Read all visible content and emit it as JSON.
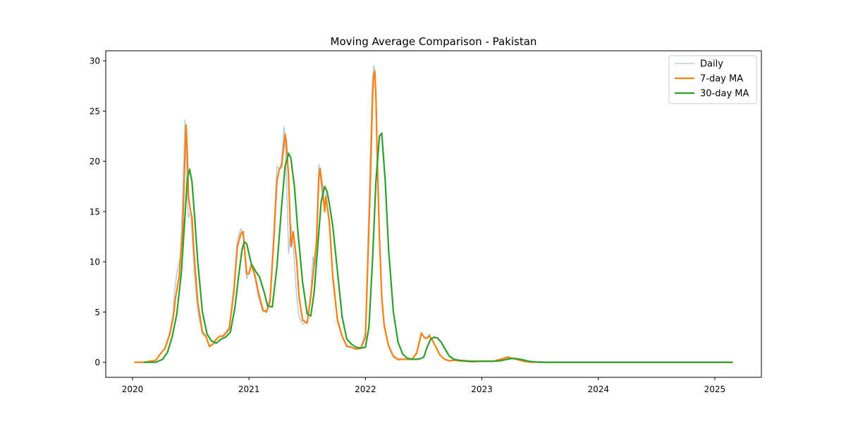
{
  "chart_data": {
    "type": "line",
    "title": "Moving Average Comparison - Pakistan",
    "xlabel": "",
    "ylabel": "",
    "xlim": [
      2019.77,
      2025.4
    ],
    "ylim": [
      -1.5,
      31.0
    ],
    "x_ticks": [
      2020,
      2021,
      2022,
      2023,
      2024,
      2025
    ],
    "x_tick_labels": [
      "2020",
      "2021",
      "2022",
      "2023",
      "2024",
      "2025"
    ],
    "y_ticks": [
      0,
      5,
      10,
      15,
      20,
      25,
      30
    ],
    "y_tick_labels": [
      "0",
      "5",
      "10",
      "15",
      "20",
      "25",
      "30"
    ],
    "grid": false,
    "legend_position": "top-right",
    "series": [
      {
        "name": "Daily",
        "color": "#aecde6",
        "x": [
          2020.02,
          2020.1,
          2020.2,
          2020.25,
          2020.28,
          2020.32,
          2020.35,
          2020.36,
          2020.38,
          2020.39,
          2020.41,
          2020.43,
          2020.45,
          2020.46,
          2020.47,
          2020.48,
          2020.5,
          2020.51,
          2020.53,
          2020.56,
          2020.6,
          2020.63,
          2020.66,
          2020.69,
          2020.72,
          2020.75,
          2020.78,
          2020.83,
          2020.87,
          2020.9,
          2020.93,
          2020.95,
          2020.96,
          2020.98,
          2021.0,
          2021.02,
          2021.05,
          2021.08,
          2021.12,
          2021.15,
          2021.18,
          2021.21,
          2021.24,
          2021.26,
          2021.28,
          2021.3,
          2021.31,
          2021.32,
          2021.34,
          2021.36,
          2021.38,
          2021.39,
          2021.41,
          2021.43,
          2021.46,
          2021.5,
          2021.53,
          2021.55,
          2021.56,
          2021.57,
          2021.6,
          2021.61,
          2021.63,
          2021.65,
          2021.66,
          2021.69,
          2021.72,
          2021.76,
          2021.8,
          2021.84,
          2021.88,
          2021.92,
          2021.96,
          2022.0,
          2022.04,
          2022.06,
          2022.07,
          2022.08,
          2022.09,
          2022.1,
          2022.12,
          2022.14,
          2022.16,
          2022.18,
          2022.2,
          2022.24,
          2022.28,
          2022.33,
          2022.36,
          2022.4,
          2022.44,
          2022.48,
          2022.51,
          2022.53,
          2022.55,
          2022.58,
          2022.61,
          2022.64,
          2022.68,
          2022.72,
          2022.76,
          2022.8,
          2022.85,
          2022.92,
          2023.0,
          2023.1,
          2023.16,
          2023.22,
          2023.26,
          2023.31,
          2023.36,
          2023.42,
          2023.5,
          2023.7,
          2024.0,
          2024.3,
          2024.6,
          2024.9,
          2025.15
        ],
        "values": [
          0,
          0,
          0.2,
          1.0,
          1.5,
          3.0,
          5.0,
          7.0,
          8.8,
          9.4,
          10.5,
          16.0,
          24.1,
          21.0,
          17.0,
          14.4,
          15.0,
          13.0,
          9.0,
          5.0,
          2.8,
          2.5,
          1.5,
          1.8,
          2.3,
          2.6,
          2.7,
          3.5,
          7.5,
          12.2,
          13.3,
          12.5,
          11.0,
          8.3,
          9.0,
          9.8,
          8.5,
          6.5,
          5.0,
          5.2,
          6.5,
          12.5,
          19.5,
          19.2,
          20.0,
          23.4,
          22.5,
          19.0,
          10.8,
          13.8,
          11.5,
          10.0,
          6.5,
          4.5,
          3.8,
          4.0,
          7.0,
          10.5,
          9.5,
          10.0,
          19.7,
          18.5,
          16.5,
          15.2,
          16.8,
          13.5,
          8.0,
          4.0,
          2.5,
          1.5,
          1.5,
          1.3,
          1.5,
          3.0,
          20.0,
          28.0,
          29.5,
          29.2,
          26.0,
          20.0,
          12.0,
          6.0,
          3.5,
          2.5,
          1.5,
          0.5,
          0.2,
          0.3,
          0.3,
          0.3,
          1.0,
          3.0,
          2.4,
          2.5,
          2.8,
          2.0,
          1.5,
          0.7,
          0.3,
          0.1,
          0.2,
          0.2,
          0.1,
          0.05,
          0.1,
          0.1,
          0.3,
          0.55,
          0.4,
          0.3,
          0.1,
          0.05,
          0.0,
          0.0,
          0.0,
          0.0,
          0.0,
          0.0,
          0.0
        ]
      },
      {
        "name": "7-day MA",
        "color": "#ff7f0e",
        "x": [
          2020.02,
          2020.1,
          2020.2,
          2020.25,
          2020.28,
          2020.32,
          2020.35,
          2020.37,
          2020.4,
          2020.43,
          2020.45,
          2020.46,
          2020.47,
          2020.48,
          2020.5,
          2020.51,
          2020.53,
          2020.56,
          2020.6,
          2020.63,
          2020.66,
          2020.69,
          2020.72,
          2020.75,
          2020.78,
          2020.83,
          2020.87,
          2020.9,
          2020.93,
          2020.95,
          2020.96,
          2020.98,
          2021.0,
          2021.02,
          2021.05,
          2021.08,
          2021.12,
          2021.15,
          2021.18,
          2021.21,
          2021.24,
          2021.26,
          2021.28,
          2021.31,
          2021.32,
          2021.34,
          2021.36,
          2021.38,
          2021.41,
          2021.43,
          2021.46,
          2021.5,
          2021.53,
          2021.56,
          2021.58,
          2021.6,
          2021.61,
          2021.63,
          2021.65,
          2021.66,
          2021.69,
          2021.72,
          2021.76,
          2021.8,
          2021.84,
          2021.88,
          2021.92,
          2021.96,
          2022.0,
          2022.04,
          2022.06,
          2022.07,
          2022.08,
          2022.09,
          2022.1,
          2022.12,
          2022.14,
          2022.16,
          2022.18,
          2022.2,
          2022.24,
          2022.28,
          2022.33,
          2022.36,
          2022.4,
          2022.44,
          2022.48,
          2022.51,
          2022.53,
          2022.55,
          2022.58,
          2022.61,
          2022.64,
          2022.68,
          2022.72,
          2022.76,
          2022.8,
          2022.85,
          2022.92,
          2023.0,
          2023.1,
          2023.16,
          2023.22,
          2023.26,
          2023.31,
          2023.36,
          2023.42,
          2023.5,
          2023.7,
          2024.0,
          2024.3,
          2024.6,
          2024.9,
          2025.15
        ],
        "values": [
          0,
          0,
          0.2,
          1.0,
          1.4,
          2.8,
          4.5,
          6.5,
          8.5,
          13.0,
          20.5,
          23.6,
          21.0,
          16.5,
          14.9,
          14.5,
          10.5,
          6.0,
          3.0,
          2.6,
          1.6,
          1.8,
          2.3,
          2.6,
          2.6,
          3.3,
          7.0,
          11.5,
          12.8,
          13.0,
          11.5,
          8.8,
          8.8,
          9.7,
          8.7,
          7.0,
          5.2,
          5.0,
          6.0,
          11.5,
          18.0,
          19.2,
          19.5,
          22.7,
          22.0,
          18.5,
          11.5,
          13.0,
          10.0,
          6.5,
          4.2,
          3.9,
          6.5,
          9.8,
          12.0,
          18.5,
          19.3,
          17.5,
          15.0,
          16.5,
          14.0,
          8.5,
          4.2,
          2.6,
          1.6,
          1.5,
          1.3,
          1.4,
          2.5,
          17.0,
          26.0,
          28.5,
          29.0,
          26.5,
          21.0,
          12.5,
          6.5,
          3.8,
          2.6,
          1.6,
          0.6,
          0.3,
          0.3,
          0.3,
          0.3,
          0.9,
          2.9,
          2.4,
          2.4,
          2.6,
          2.1,
          1.4,
          0.7,
          0.3,
          0.15,
          0.2,
          0.15,
          0.1,
          0.05,
          0.1,
          0.1,
          0.3,
          0.5,
          0.4,
          0.25,
          0.1,
          0.02,
          0.0,
          0.0,
          0.0,
          0.0,
          0.0,
          0.0,
          0.0
        ]
      },
      {
        "name": "30-day MA",
        "color": "#2ca02c",
        "x": [
          2020.1,
          2020.2,
          2020.26,
          2020.3,
          2020.34,
          2020.38,
          2020.42,
          2020.45,
          2020.47,
          2020.49,
          2020.51,
          2020.53,
          2020.56,
          2020.6,
          2020.64,
          2020.68,
          2020.72,
          2020.76,
          2020.8,
          2020.84,
          2020.88,
          2020.91,
          2020.94,
          2020.96,
          2020.98,
          2021.02,
          2021.06,
          2021.09,
          2021.13,
          2021.16,
          2021.2,
          2021.24,
          2021.28,
          2021.31,
          2021.34,
          2021.36,
          2021.39,
          2021.42,
          2021.46,
          2021.5,
          2021.53,
          2021.56,
          2021.59,
          2021.62,
          2021.65,
          2021.67,
          2021.69,
          2021.72,
          2021.76,
          2021.8,
          2021.84,
          2021.88,
          2021.92,
          2021.96,
          2022.0,
          2022.03,
          2022.06,
          2022.09,
          2022.12,
          2022.14,
          2022.17,
          2022.2,
          2022.24,
          2022.28,
          2022.32,
          2022.36,
          2022.4,
          2022.44,
          2022.47,
          2022.5,
          2022.53,
          2022.56,
          2022.59,
          2022.62,
          2022.65,
          2022.68,
          2022.72,
          2022.76,
          2022.8,
          2022.85,
          2022.92,
          2023.0,
          2023.1,
          2023.16,
          2023.22,
          2023.26,
          2023.3,
          2023.35,
          2023.4,
          2023.46,
          2023.55,
          2023.7,
          2024.0,
          2024.3,
          2024.6,
          2024.9,
          2025.15
        ],
        "values": [
          0,
          0,
          0.3,
          1.0,
          2.5,
          4.8,
          9.0,
          14.5,
          18.2,
          19.2,
          18.0,
          15.0,
          10.0,
          5.0,
          2.8,
          2.1,
          1.9,
          2.3,
          2.5,
          3.0,
          5.5,
          8.5,
          11.2,
          12.0,
          11.8,
          9.8,
          9.0,
          8.5,
          7.0,
          5.6,
          5.5,
          9.5,
          15.5,
          19.5,
          20.8,
          20.3,
          17.5,
          13.0,
          8.0,
          4.8,
          4.6,
          7.0,
          11.5,
          16.0,
          17.5,
          17.0,
          15.8,
          13.5,
          9.0,
          4.5,
          2.3,
          1.8,
          1.5,
          1.4,
          1.5,
          3.5,
          10.0,
          18.0,
          22.5,
          22.8,
          18.0,
          11.0,
          5.0,
          2.0,
          0.8,
          0.4,
          0.3,
          0.3,
          0.35,
          0.5,
          1.5,
          2.3,
          2.5,
          2.4,
          2.0,
          1.4,
          0.6,
          0.3,
          0.2,
          0.15,
          0.1,
          0.1,
          0.1,
          0.15,
          0.3,
          0.38,
          0.35,
          0.25,
          0.1,
          0.03,
          0.0,
          0.0,
          0.0,
          0.0,
          0.0,
          0.0,
          0.0
        ]
      }
    ]
  }
}
